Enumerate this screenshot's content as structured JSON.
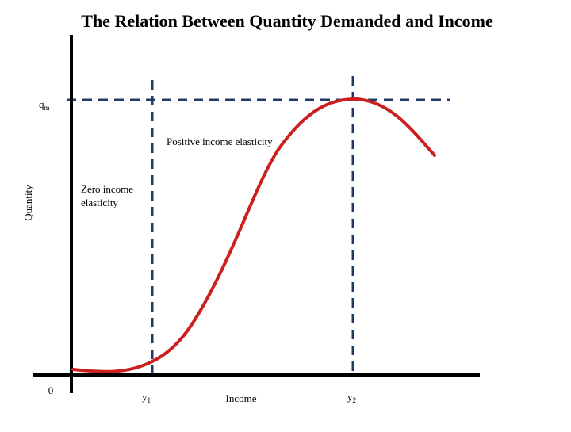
{
  "diagram": {
    "title": "The Relation Between Quantity Demanded and Income",
    "y_axis_label": "Quantity",
    "x_axis_label": "Income",
    "origin_label": "0",
    "qm_label": {
      "base": "q",
      "sub": "m"
    },
    "y1_label": {
      "base": "y",
      "sub": "1"
    },
    "y2_label": {
      "base": "y",
      "sub": "2"
    },
    "annotations": {
      "positive": "Positive income elasticity",
      "zero_line1": "Zero income",
      "zero_line2": "elasticity"
    },
    "colors": {
      "curve": "#cc1f1f",
      "guides": "#1f3b63",
      "axes": "#000000"
    }
  }
}
